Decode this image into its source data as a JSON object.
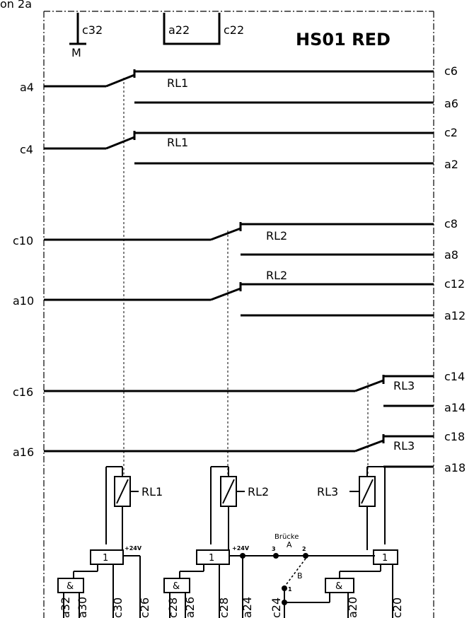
{
  "header_fragment": "on 2a",
  "title": "HS01 RED",
  "top": {
    "c32": "c32",
    "m": "M",
    "a22": "a22",
    "c22": "c22"
  },
  "relays": {
    "rl1": [
      {
        "in": "a4",
        "no": "c6",
        "nc": "a6",
        "label": "RL1"
      },
      {
        "in": "c4",
        "no": "c2",
        "nc": "a2",
        "label": "RL1"
      }
    ],
    "rl2": [
      {
        "in": "c10",
        "no": "c8",
        "nc": "a8",
        "label": "RL2"
      },
      {
        "in": "a10",
        "no": "c12",
        "nc": "a12",
        "label": "RL2"
      }
    ],
    "rl3": [
      {
        "in": "c16",
        "no": "c14",
        "nc": "a14",
        "label": "RL3"
      },
      {
        "in": "a16",
        "no": "c18",
        "nc": "a18",
        "label": "RL3"
      }
    ]
  },
  "coils": {
    "rl1": "RL1",
    "rl2": "RL2",
    "rl3": "RL3"
  },
  "logic": {
    "or_symbol": "1",
    "and_symbol": "&",
    "plus24v": "+24V"
  },
  "bridge": {
    "label": "Brücke",
    "a": "A",
    "b": "B",
    "p1": "1",
    "p2": "2",
    "p3": "3"
  },
  "bottom_pins": [
    "a32",
    "a30",
    "c30",
    "c26",
    "c28",
    "a26",
    "c28",
    "a24",
    "c24",
    "a20",
    "c20"
  ]
}
